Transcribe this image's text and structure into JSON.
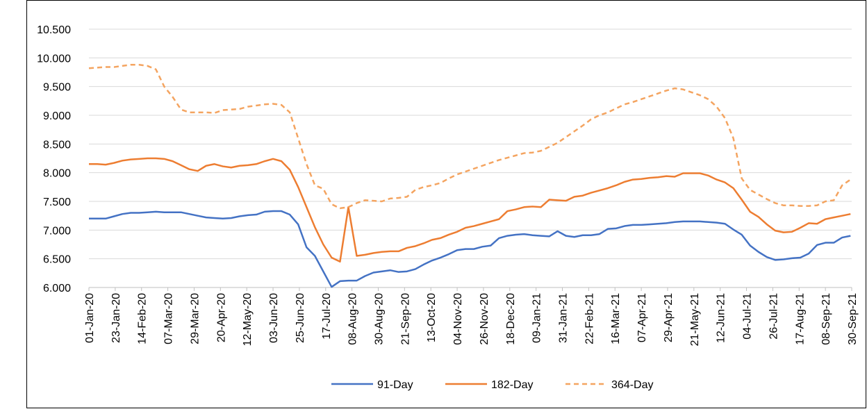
{
  "chart_data": {
    "type": "line",
    "x": [
      "2020-01-01",
      "2020-01-08",
      "2020-01-15",
      "2020-01-22",
      "2020-01-29",
      "2020-02-05",
      "2020-02-12",
      "2020-02-19",
      "2020-02-26",
      "2020-03-04",
      "2020-03-11",
      "2020-03-18",
      "2020-03-25",
      "2020-04-01",
      "2020-04-08",
      "2020-04-15",
      "2020-04-22",
      "2020-04-29",
      "2020-05-06",
      "2020-05-13",
      "2020-05-20",
      "2020-05-27",
      "2020-06-03",
      "2020-06-10",
      "2020-06-17",
      "2020-06-24",
      "2020-07-01",
      "2020-07-08",
      "2020-07-15",
      "2020-07-22",
      "2020-07-29",
      "2020-08-05",
      "2020-08-12",
      "2020-08-19",
      "2020-08-26",
      "2020-09-02",
      "2020-09-09",
      "2020-09-16",
      "2020-09-23",
      "2020-09-30",
      "2020-10-07",
      "2020-10-14",
      "2020-10-21",
      "2020-10-28",
      "2020-11-04",
      "2020-11-11",
      "2020-11-18",
      "2020-11-25",
      "2020-12-02",
      "2020-12-09",
      "2020-12-16",
      "2020-12-23",
      "2020-12-30",
      "2021-01-06",
      "2021-01-13",
      "2021-01-20",
      "2021-01-27",
      "2021-02-03",
      "2021-02-10",
      "2021-02-17",
      "2021-02-24",
      "2021-03-03",
      "2021-03-10",
      "2021-03-17",
      "2021-03-24",
      "2021-03-31",
      "2021-04-07",
      "2021-04-14",
      "2021-04-21",
      "2021-04-28",
      "2021-05-05",
      "2021-05-12",
      "2021-05-19",
      "2021-05-26",
      "2021-06-02",
      "2021-06-09",
      "2021-06-16",
      "2021-06-23",
      "2021-06-30",
      "2021-07-07",
      "2021-07-14",
      "2021-07-21",
      "2021-07-28",
      "2021-08-04",
      "2021-08-11",
      "2021-08-18",
      "2021-08-25",
      "2021-09-01",
      "2021-09-08",
      "2021-09-15",
      "2021-09-22",
      "2021-09-29"
    ],
    "series": [
      {
        "name": "91-Day",
        "color": "#4472c4",
        "line_style": "solid",
        "values": [
          7.2,
          7.2,
          7.2,
          7.24,
          7.28,
          7.3,
          7.3,
          7.31,
          7.32,
          7.31,
          7.31,
          7.31,
          7.28,
          7.25,
          7.22,
          7.21,
          7.2,
          7.21,
          7.24,
          7.26,
          7.27,
          7.32,
          7.33,
          7.33,
          7.27,
          7.1,
          6.7,
          6.55,
          6.28,
          6.01,
          6.11,
          6.12,
          6.12,
          6.2,
          6.26,
          6.28,
          6.3,
          6.27,
          6.28,
          6.32,
          6.4,
          6.47,
          6.52,
          6.58,
          6.65,
          6.67,
          6.67,
          6.71,
          6.73,
          6.86,
          6.9,
          6.92,
          6.93,
          6.91,
          6.9,
          6.89,
          6.98,
          6.9,
          6.88,
          6.91,
          6.91,
          6.93,
          7.02,
          7.03,
          7.07,
          7.09,
          7.09,
          7.1,
          7.11,
          7.12,
          7.14,
          7.15,
          7.15,
          7.15,
          7.14,
          7.13,
          7.11,
          7.01,
          6.92,
          6.73,
          6.62,
          6.53,
          6.48,
          6.49,
          6.51,
          6.52,
          6.59,
          6.74,
          6.78,
          6.78,
          6.87,
          6.9
        ]
      },
      {
        "name": "182-Day",
        "color": "#ed7d31",
        "line_style": "solid",
        "values": [
          8.15,
          8.15,
          8.14,
          8.17,
          8.21,
          8.23,
          8.24,
          8.25,
          8.25,
          8.24,
          8.2,
          8.13,
          8.06,
          8.03,
          8.12,
          8.15,
          8.11,
          8.09,
          8.12,
          8.13,
          8.15,
          8.2,
          8.24,
          8.2,
          8.05,
          7.75,
          7.4,
          7.05,
          6.75,
          6.52,
          6.45,
          7.4,
          6.55,
          6.57,
          6.6,
          6.62,
          6.63,
          6.63,
          6.69,
          6.72,
          6.77,
          6.83,
          6.86,
          6.92,
          6.97,
          7.04,
          7.07,
          7.11,
          7.15,
          7.19,
          7.33,
          7.36,
          7.4,
          7.41,
          7.4,
          7.53,
          7.52,
          7.51,
          7.58,
          7.6,
          7.65,
          7.69,
          7.73,
          7.78,
          7.84,
          7.88,
          7.89,
          7.91,
          7.92,
          7.94,
          7.93,
          7.99,
          7.99,
          7.99,
          7.95,
          7.88,
          7.83,
          7.73,
          7.53,
          7.32,
          7.23,
          7.1,
          6.99,
          6.96,
          6.97,
          7.04,
          7.12,
          7.11,
          7.19,
          7.22,
          7.25,
          7.28
        ]
      },
      {
        "name": "364-Day",
        "color": "#f4a460",
        "line_style": "dashed",
        "values": [
          9.82,
          9.83,
          9.84,
          9.84,
          9.86,
          9.88,
          9.88,
          9.86,
          9.8,
          9.5,
          9.32,
          9.1,
          9.05,
          9.05,
          9.05,
          9.04,
          9.09,
          9.1,
          9.11,
          9.15,
          9.17,
          9.19,
          9.2,
          9.18,
          9.05,
          8.6,
          8.15,
          7.78,
          7.72,
          7.45,
          7.38,
          7.4,
          7.47,
          7.52,
          7.51,
          7.5,
          7.55,
          7.56,
          7.58,
          7.7,
          7.75,
          7.78,
          7.82,
          7.9,
          7.97,
          8.02,
          8.07,
          8.12,
          8.17,
          8.22,
          8.26,
          8.3,
          8.34,
          8.35,
          8.38,
          8.45,
          8.52,
          8.62,
          8.72,
          8.82,
          8.93,
          9.0,
          9.05,
          9.12,
          9.19,
          9.23,
          9.28,
          9.33,
          9.38,
          9.43,
          9.47,
          9.45,
          9.4,
          9.35,
          9.28,
          9.15,
          8.95,
          8.6,
          7.9,
          7.7,
          7.62,
          7.54,
          7.47,
          7.43,
          7.43,
          7.42,
          7.42,
          7.43,
          7.5,
          7.52,
          7.78,
          7.88
        ]
      }
    ],
    "xlim": [
      "2020-01-01",
      "2021-09-30"
    ],
    "xticks": [
      {
        "value": "2020-01-01",
        "label": "01-Jan-20"
      },
      {
        "value": "2020-01-23",
        "label": "23-Jan-20"
      },
      {
        "value": "2020-02-14",
        "label": "14-Feb-20"
      },
      {
        "value": "2020-03-07",
        "label": "07-Mar-20"
      },
      {
        "value": "2020-03-29",
        "label": "29-Mar-20"
      },
      {
        "value": "2020-04-20",
        "label": "20-Apr-20"
      },
      {
        "value": "2020-05-12",
        "label": "12-May-20"
      },
      {
        "value": "2020-06-03",
        "label": "03-Jun-20"
      },
      {
        "value": "2020-06-25",
        "label": "25-Jun-20"
      },
      {
        "value": "2020-07-17",
        "label": "17-Jul-20"
      },
      {
        "value": "2020-08-08",
        "label": "08-Aug-20"
      },
      {
        "value": "2020-08-30",
        "label": "30-Aug-20"
      },
      {
        "value": "2020-09-21",
        "label": "21-Sep-20"
      },
      {
        "value": "2020-10-13",
        "label": "13-Oct-20"
      },
      {
        "value": "2020-11-04",
        "label": "04-Nov-20"
      },
      {
        "value": "2020-11-26",
        "label": "26-Nov-20"
      },
      {
        "value": "2020-12-18",
        "label": "18-Dec-20"
      },
      {
        "value": "2021-01-09",
        "label": "09-Jan-21"
      },
      {
        "value": "2021-01-31",
        "label": "31-Jan-21"
      },
      {
        "value": "2021-02-22",
        "label": "22-Feb-21"
      },
      {
        "value": "2021-03-16",
        "label": "16-Mar-21"
      },
      {
        "value": "2021-04-07",
        "label": "07-Apr-21"
      },
      {
        "value": "2021-04-29",
        "label": "29-Apr-21"
      },
      {
        "value": "2021-05-21",
        "label": "21-May-21"
      },
      {
        "value": "2021-06-12",
        "label": "12-Jun-21"
      },
      {
        "value": "2021-07-04",
        "label": "04-Jul-21"
      },
      {
        "value": "2021-07-26",
        "label": "26-Jul-21"
      },
      {
        "value": "2021-08-17",
        "label": "17-Aug-21"
      },
      {
        "value": "2021-09-08",
        "label": "08-Sep-21"
      },
      {
        "value": "2021-09-30",
        "label": "30-Sep-21"
      }
    ],
    "ylim": [
      6,
      10.5
    ],
    "yticks": [
      {
        "value": 6,
        "label": "6.000"
      },
      {
        "value": 6.5,
        "label": "6.500"
      },
      {
        "value": 7,
        "label": "7.000"
      },
      {
        "value": 7.5,
        "label": "7.500"
      },
      {
        "value": 8,
        "label": "8.000"
      },
      {
        "value": 8.5,
        "label": "8.500"
      },
      {
        "value": 9,
        "label": "9.000"
      },
      {
        "value": 9.5,
        "label": "9.500"
      },
      {
        "value": 10,
        "label": "10.000"
      },
      {
        "value": 10.5,
        "label": "10.500"
      }
    ],
    "grid": true,
    "legend": "bottom"
  }
}
